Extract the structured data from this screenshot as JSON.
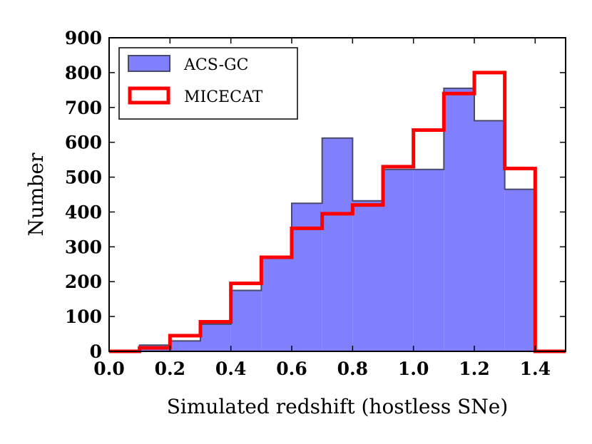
{
  "chart_data": {
    "type": "histogram",
    "xlabel": "Simulated redshift (hostless SNe)",
    "ylabel": "Number",
    "xlim": [
      0.0,
      1.5
    ],
    "ylim": [
      0,
      900
    ],
    "x_ticks": [
      "0.0",
      "0.2",
      "0.4",
      "0.6",
      "0.8",
      "1.0",
      "1.2",
      "1.4"
    ],
    "y_ticks": [
      "0",
      "100",
      "200",
      "300",
      "400",
      "500",
      "600",
      "700",
      "800",
      "900"
    ],
    "bin_edges": [
      0.0,
      0.1,
      0.2,
      0.3,
      0.4,
      0.5,
      0.6,
      0.7,
      0.8,
      0.9,
      1.0,
      1.1,
      1.2,
      1.3,
      1.4,
      1.5
    ],
    "grid": false,
    "legend_position": "top-left",
    "series": [
      {
        "name": "ACS-GC",
        "style": "filled",
        "color": "#8080ff",
        "edge_color": "#4a4a6a",
        "values": [
          0,
          18,
          30,
          78,
          175,
          270,
          425,
          612,
          432,
          522,
          522,
          755,
          662,
          465,
          0
        ]
      },
      {
        "name": "MICECAT",
        "style": "step",
        "color": "#ff0000",
        "values": [
          0,
          10,
          45,
          85,
          195,
          270,
          353,
          395,
          420,
          530,
          635,
          740,
          800,
          525,
          0
        ]
      }
    ]
  }
}
